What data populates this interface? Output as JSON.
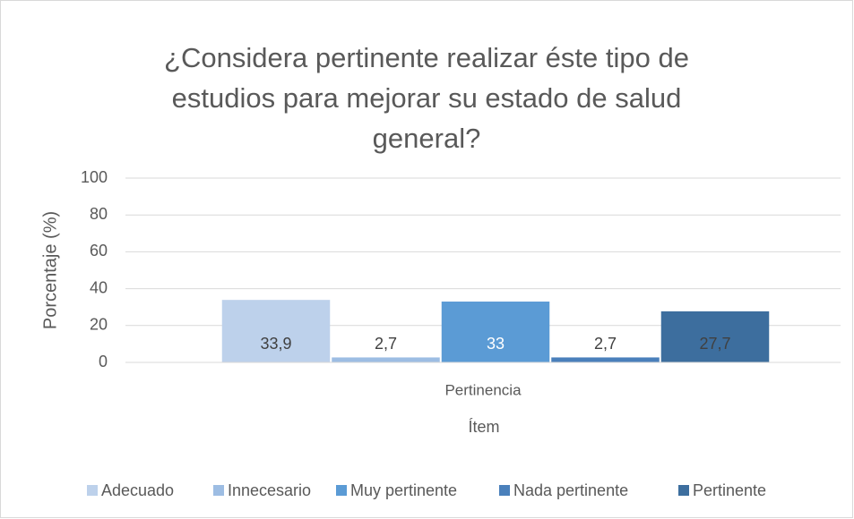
{
  "chart_data": {
    "type": "bar",
    "title": "¿Considera pertinente realizar éste tipo de estudios para mejorar su estado de salud general?",
    "categories": [
      "Pertinencia"
    ],
    "x_label": "Ítem",
    "y_label": "Porcentaje (%)",
    "series": [
      {
        "name": "Adecuado",
        "color": "#bdd1eb",
        "values": [
          33.9
        ],
        "value_labels": [
          "33,9"
        ]
      },
      {
        "name": "Innecesario",
        "color": "#9dbde3",
        "values": [
          2.7
        ],
        "value_labels": [
          "2,7"
        ]
      },
      {
        "name": "Muy pertinente",
        "color": "#5b9bd5",
        "values": [
          33
        ],
        "value_labels": [
          "33"
        ]
      },
      {
        "name": "Nada pertinente",
        "color": "#4a80bb",
        "values": [
          2.7
        ],
        "value_labels": [
          "2,7"
        ]
      },
      {
        "name": "Pertinente",
        "color": "#3d6e9e",
        "values": [
          27.7
        ],
        "value_labels": [
          "27,7"
        ]
      }
    ],
    "ylim": [
      0,
      100
    ],
    "yticks": [
      0,
      20,
      40,
      60,
      80,
      100
    ],
    "grid": true,
    "legend": "bottom"
  }
}
